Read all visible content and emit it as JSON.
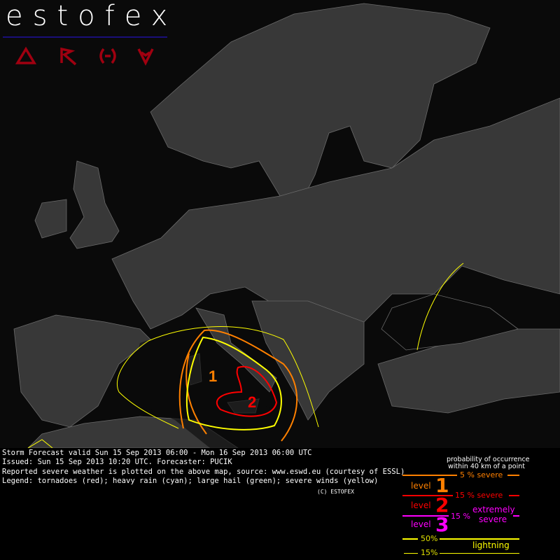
{
  "header": {
    "logo": "estofex",
    "nav_icons": [
      "triangle-icon",
      "arrow-icon",
      "bracket-icon",
      "v-icon"
    ]
  },
  "map": {
    "levels": [
      {
        "label": "1",
        "color": "#ff8000"
      },
      {
        "label": "2",
        "color": "#ff0000"
      }
    ],
    "colors": {
      "sea": "#0a0a0a",
      "land": "#3a3a3a",
      "borders": "#888888",
      "lightning": "#ffff00",
      "level1": "#ff8000",
      "level2": "#ff0000",
      "level3": "#ff00ff"
    }
  },
  "info": {
    "line1": "Storm Forecast valid Sun 15 Sep 2013 06:00 - Mon 16 Sep 2013 06:00 UTC",
    "line2": "Issued: Sun 15 Sep 2013 10:20 UTC. Forecaster: PUCIK",
    "line3": "Reported severe weather is plotted on the above map, source: www.eswd.eu (courtesy of ESSL)",
    "line4": "Legend: tornadoes (red); heavy rain (cyan); large hail (green); severe winds (yellow)",
    "copyright": "(C) ESTOFEX"
  },
  "legend": {
    "title1": "probability of occurrence",
    "title2": "within 40 km of a point",
    "p5": "5 % severe",
    "level_word": "level",
    "l1": "1",
    "l2": "2",
    "l3": "3",
    "p15": "15 % severe",
    "p15x": "15 %",
    "extremely": "extremely",
    "severe": "severe",
    "p50": "50%",
    "lightning": "lightning",
    "p15l": "15%"
  }
}
